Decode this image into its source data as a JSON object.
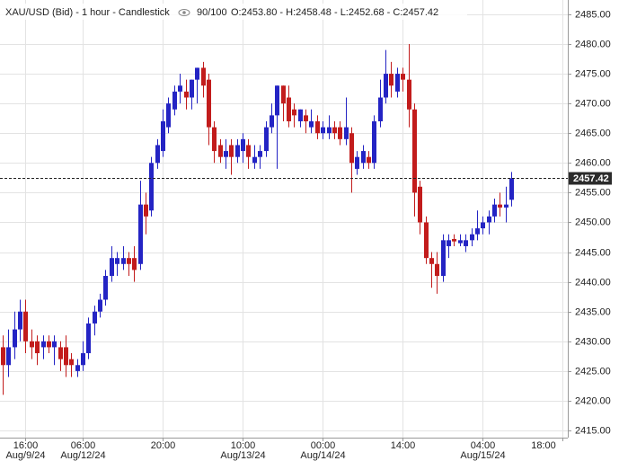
{
  "chart_data": {
    "type": "candlestick",
    "title": "XAU/USD (Bid) - 1 hour - Candlestick",
    "counter": "90/100",
    "header_ohlc": "O:2453.80 - H:2458.48 - L:2452.68 - C:2457.42",
    "up_color": "#2424c4",
    "down_color": "#c21c1c",
    "grid": true,
    "categories": [
      null,
      null,
      null,
      null,
      "16:00",
      null,
      null,
      null,
      null,
      null,
      null,
      null,
      null,
      null,
      "06:00",
      null,
      null,
      null,
      null,
      null,
      null,
      null,
      null,
      null,
      null,
      null,
      null,
      null,
      "20:00",
      null,
      null,
      null,
      null,
      null,
      null,
      null,
      null,
      null,
      null,
      null,
      null,
      null,
      "10:00",
      null,
      null,
      null,
      null,
      null,
      null,
      null,
      null,
      null,
      null,
      null,
      null,
      null,
      "00:00",
      null,
      null,
      null,
      null,
      null,
      null,
      null,
      null,
      null,
      null,
      null,
      null,
      null,
      "14:00",
      null,
      null,
      null,
      null,
      null,
      null,
      null,
      null,
      null,
      null,
      null,
      null,
      null,
      "04:00",
      null,
      null,
      null,
      null,
      null,
      null,
      null,
      null,
      null,
      null,
      null,
      null,
      null,
      "18:00",
      null
    ],
    "dates": [
      null,
      null,
      null,
      null,
      "Aug/9/24",
      null,
      null,
      null,
      null,
      null,
      null,
      null,
      null,
      null,
      "Aug/12/24",
      null,
      null,
      null,
      null,
      null,
      null,
      null,
      null,
      null,
      null,
      null,
      null,
      null,
      null,
      null,
      null,
      null,
      null,
      null,
      null,
      null,
      null,
      null,
      null,
      null,
      null,
      null,
      "Aug/13/24",
      null,
      null,
      null,
      null,
      null,
      null,
      null,
      null,
      null,
      null,
      null,
      null,
      null,
      "Aug/14/24",
      null,
      null,
      null,
      null,
      null,
      null,
      null,
      null,
      null,
      null,
      null,
      null,
      null,
      null,
      null,
      null,
      null,
      null,
      null,
      null,
      null,
      null,
      null,
      null,
      null,
      null,
      null,
      "Aug/15/24",
      null,
      null,
      null,
      null,
      null,
      null,
      null,
      null,
      null,
      null,
      null,
      null,
      null,
      null,
      null
    ],
    "open": [
      2429,
      2426,
      2429,
      2432,
      2435,
      2430,
      2430,
      2429,
      2430,
      2429,
      2429,
      2429,
      2427,
      2425,
      2426,
      2428,
      2433,
      2435,
      2437,
      2441,
      2443,
      2443,
      2444,
      2444,
      2443,
      2453,
      2452,
      2460,
      2462,
      2466,
      2469,
      2472,
      2472,
      2471,
      2474,
      2476,
      2474,
      2466,
      2463,
      2461,
      2463,
      2461,
      2462,
      2463,
      2460,
      2461,
      2462,
      2466,
      2468,
      2473,
      2471,
      2469,
      2467,
      2468,
      2466,
      2467,
      2465,
      2465,
      2466,
      2466,
      2464,
      2465,
      2459,
      2460,
      2461,
      2460,
      2467,
      2471,
      2475,
      2472,
      2475,
      2474,
      2469,
      2456,
      2450,
      2444,
      2443,
      2441,
      2446,
      2447.2,
      2446.5,
      2446,
      2447,
      2448,
      2449,
      2450,
      2451,
      2453,
      2452.5,
      2453.8,
      null,
      null,
      null,
      null,
      null,
      null,
      null,
      null,
      null,
      null
    ],
    "high": [
      2431,
      2432,
      2435,
      2437,
      2437,
      2432,
      2431,
      2431,
      2431,
      2431,
      2430,
      2431,
      2428,
      2427,
      2430,
      2434,
      2436,
      2438,
      2442,
      2446,
      2445,
      2446,
      2445,
      2446,
      2457,
      2455,
      2461,
      2464,
      2469,
      2471,
      2473,
      2475,
      2474,
      2474,
      2476,
      2477,
      2475,
      2467,
      2464,
      2464,
      2464,
      2464,
      2465,
      2464,
      2463,
      2463,
      2467,
      2470,
      2473,
      2473,
      2473,
      2470,
      2469,
      2469,
      2469,
      2468,
      2467,
      2468,
      2467,
      2467,
      2471,
      2466,
      2462,
      2463,
      2462,
      2468,
      2474,
      2479,
      2477,
      2476,
      2476,
      2480,
      2470,
      2457,
      2451,
      2445,
      2445,
      2448,
      2448,
      2448,
      2448,
      2448,
      2449,
      2452,
      2451,
      2452,
      2454,
      2455,
      2456,
      2458.48,
      null,
      null,
      null,
      null,
      null,
      null,
      null,
      null,
      null,
      null
    ],
    "low": [
      2421,
      2424,
      2427,
      2430,
      2428,
      2427,
      2426,
      2427,
      2428,
      2426,
      2425,
      2424,
      2424,
      2424,
      2425,
      2427,
      2431,
      2434,
      2436,
      2440,
      2441,
      2442,
      2441,
      2440,
      2442,
      2448,
      2451,
      2459,
      2461,
      2465,
      2468,
      2470,
      2469,
      2469,
      2470,
      2471,
      2463,
      2460,
      2460,
      2459,
      2458,
      2460,
      2460,
      2459,
      2459,
      2459,
      2461,
      2465,
      2459,
      2467,
      2466,
      2466,
      2466,
      2465,
      2465,
      2464,
      2464,
      2464,
      2464,
      2463,
      2463,
      2455,
      2458,
      2459,
      2459,
      2459,
      2466,
      2470,
      2471,
      2471,
      2472,
      2466,
      2451,
      2448,
      2443,
      2439,
      2438,
      2440,
      2444,
      2446,
      2446,
      2445,
      2446,
      2447,
      2448,
      2448,
      2450,
      2451,
      2450,
      2452.68,
      null,
      null,
      null,
      null,
      null,
      null,
      null,
      null,
      null,
      null
    ],
    "close": [
      2426,
      2429,
      2432,
      2435,
      2430,
      2429,
      2428,
      2430,
      2429,
      2430,
      2427,
      2426,
      2426,
      2426,
      2428,
      2433,
      2435,
      2437,
      2441,
      2444,
      2444,
      2444,
      2443,
      2442,
      2453,
      2451,
      2460,
      2463,
      2467,
      2470,
      2472,
      2473,
      2471,
      2474,
      2476,
      2473,
      2466,
      2462,
      2461,
      2462,
      2461,
      2463,
      2464,
      2461,
      2461,
      2462,
      2466,
      2468,
      2473,
      2470,
      2467,
      2468,
      2469,
      2467,
      2467,
      2465,
      2466,
      2466,
      2465,
      2464,
      2466,
      2460,
      2461,
      2462,
      2460,
      2467,
      2471,
      2475,
      2473,
      2475,
      2474,
      2469,
      2455,
      2450,
      2444,
      2443,
      2441,
      2447,
      2447,
      2446.8,
      2447,
      2447,
      2448,
      2449,
      2450,
      2451,
      2453,
      2452.5,
      2453,
      2457.42,
      null,
      null,
      null,
      null,
      null,
      null,
      null,
      null,
      null,
      null
    ],
    "ylim": [
      2413.8,
      2487.4
    ],
    "yticks": [
      {
        "value": 2415,
        "label": "2415.00"
      },
      {
        "value": 2420,
        "label": "2420.00"
      },
      {
        "value": 2425,
        "label": "2425.00"
      },
      {
        "value": 2430,
        "label": "2430.00"
      },
      {
        "value": 2435,
        "label": "2435.00"
      },
      {
        "value": 2440,
        "label": "2440.00"
      },
      {
        "value": 2445,
        "label": "2445.00"
      },
      {
        "value": 2450,
        "label": "2450.00"
      },
      {
        "value": 2455,
        "label": "2455.00"
      },
      {
        "value": 2460,
        "label": "2460.00"
      },
      {
        "value": 2465,
        "label": "2465.00"
      },
      {
        "value": 2470,
        "label": "2470.00"
      },
      {
        "value": 2475,
        "label": "2475.00"
      },
      {
        "value": 2480,
        "label": "2480.00"
      },
      {
        "value": 2485,
        "label": "2485.00"
      }
    ]
  }
}
